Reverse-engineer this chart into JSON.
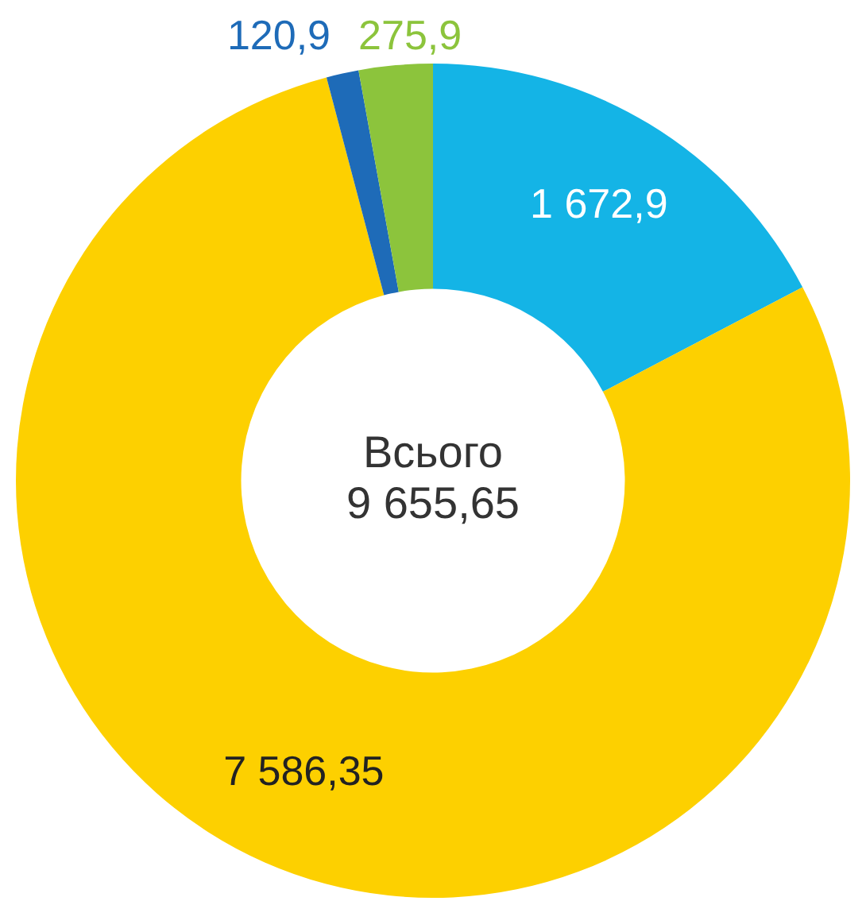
{
  "chart_data": {
    "type": "donut",
    "categories": [
      null,
      null,
      null,
      null
    ],
    "values": [
      1672.9,
      7586.35,
      120.9,
      275.9
    ],
    "colors": [
      "#14b4e6",
      "#fdd000",
      "#1e6bb8",
      "#8cc43c"
    ],
    "value_labels": [
      "1 672,9",
      "7 586,35",
      "120,9",
      "275,9"
    ],
    "annotations": [
      "Всього",
      "9 655,65"
    ],
    "legend": false
  }
}
